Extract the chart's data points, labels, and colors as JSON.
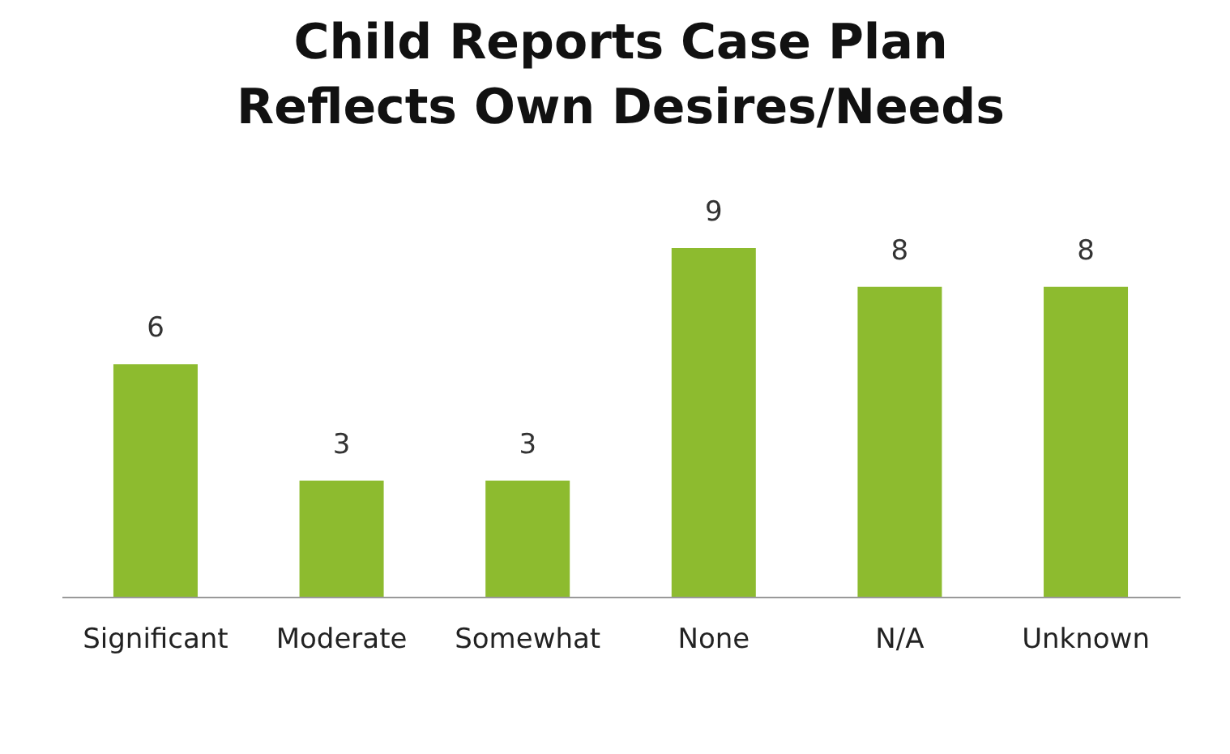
{
  "chart_data": {
    "type": "bar",
    "title": "Child Reports Case Plan\nReflects Own Desires/Needs",
    "categories": [
      "Significant",
      "Moderate",
      "Somewhat",
      "None",
      "N/A",
      "Unknown"
    ],
    "values": [
      6,
      3,
      3,
      9,
      8,
      8
    ],
    "color": "#8dbb2f",
    "data_labels": true
  }
}
